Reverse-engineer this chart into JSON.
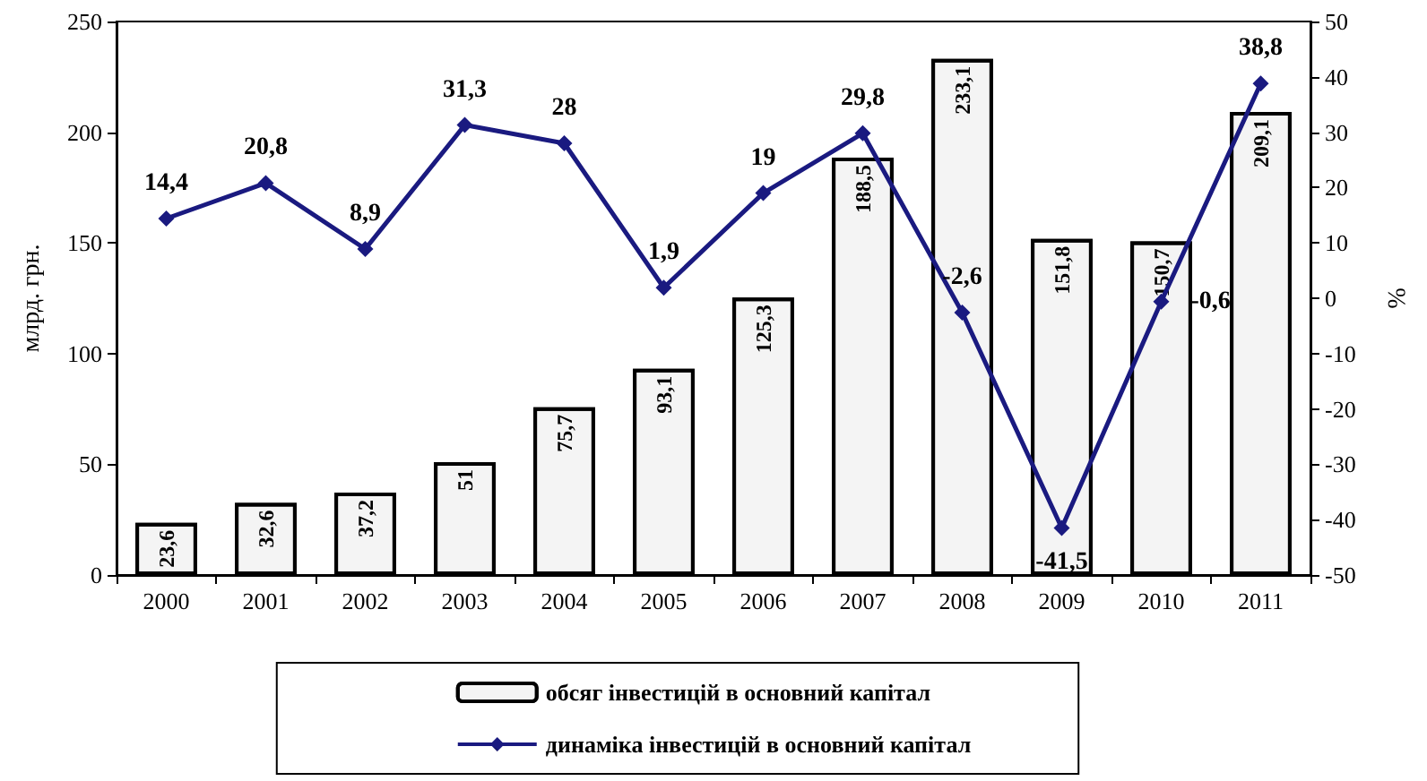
{
  "chart_data": {
    "type": "bar",
    "ylabel": "млрд. грн.",
    "y2label": "%",
    "categories": [
      "2000",
      "2001",
      "2002",
      "2003",
      "2004",
      "2005",
      "2006",
      "2007",
      "2008",
      "2009",
      "2010",
      "2011"
    ],
    "series": [
      {
        "name": "обсяг інвестицій в основний капітал",
        "type": "bar",
        "color": "#f4f4f4",
        "values": [
          23.6,
          32.6,
          37.2,
          51,
          75.7,
          93.1,
          125.3,
          188.5,
          233.1,
          151.8,
          150.7,
          209.1
        ],
        "value_labels": [
          "23,6",
          "32,6",
          "37,2",
          "51",
          "75,7",
          "93,1",
          "125,3",
          "188,5",
          "233,1",
          "151,8",
          "150,7",
          "209,1"
        ]
      },
      {
        "name": "динаміка інвестицій в основний капітал",
        "type": "line",
        "axis": "y2",
        "color": "#1a1a80",
        "marker": "diamond",
        "values": [
          14.4,
          20.8,
          8.9,
          31.3,
          28,
          1.9,
          19,
          29.8,
          -2.6,
          -41.5,
          -0.6,
          38.8
        ],
        "value_labels": [
          "14,4",
          "20,8",
          "8,9",
          "31,3",
          "28",
          "1,9",
          "19",
          "29,8",
          "-2,6",
          "-41,5",
          "-0,6",
          "38,8"
        ]
      }
    ],
    "ylim": [
      0,
      250
    ],
    "yticks": [
      0,
      50,
      100,
      150,
      200,
      250
    ],
    "y2lim": [
      -50,
      50
    ],
    "y2ticks": [
      -50,
      -40,
      -30,
      -20,
      -10,
      0,
      10,
      20,
      30,
      40,
      50
    ],
    "grid": false,
    "legend": "bottom"
  }
}
